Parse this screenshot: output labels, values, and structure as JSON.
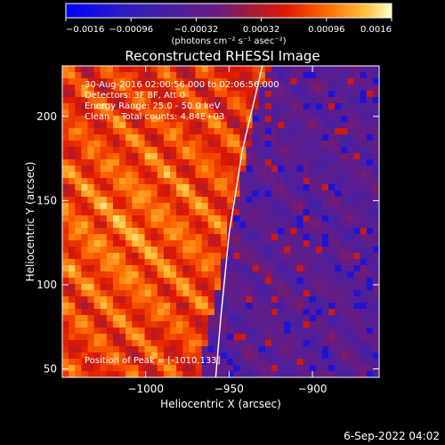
{
  "chart_data": {
    "type": "heatmap",
    "title": "Reconstructed RHESSI Image",
    "xlabel": "Heliocentric X (arcsec)",
    "ylabel": "Heliocentric Y (arcsec)",
    "xlim": [
      -1050,
      -860
    ],
    "ylim": [
      45,
      230
    ],
    "x_ticks": [
      -1000,
      -950,
      -900
    ],
    "x_tick_labels": [
      "−1000",
      "−950",
      "−900"
    ],
    "y_ticks": [
      50,
      100,
      150,
      200
    ],
    "y_tick_labels": [
      "50",
      "100",
      "150",
      "200"
    ],
    "colorbar": {
      "min": -0.0016,
      "max": 0.0016,
      "ticks": [
        -0.0016,
        -0.00096,
        -0.00032,
        0.00032,
        0.00096,
        0.0016
      ],
      "tick_labels": [
        "−0.0016",
        "−0.00096",
        "−0.00032",
        "0.00032",
        "0.00096",
        "0.0016"
      ],
      "label": "(photons cm⁻² s⁻¹ asec⁻²)"
    },
    "annotations": [
      "30-Aug-2016 02:00:56.000 to 02:06:56.000",
      "Detectors: 3F 8F, Att 0",
      "Energy Range: 25.0 - 50.0 keV",
      "Clean    Total counts: 4.84E+03"
    ],
    "peak_label": "Position of Peak = [-1010,133]",
    "peak_position": [
      -1010,
      133
    ],
    "limb_arc": [
      [
        -930,
        230
      ],
      [
        -942,
        180
      ],
      [
        -950,
        130
      ],
      [
        -955,
        80
      ],
      [
        -958,
        45
      ]
    ],
    "grid": false,
    "legend": "none"
  },
  "footer": {
    "date": "6-Sep-2022 04:02"
  },
  "colors": {
    "background": "#000000",
    "text": "#ffffff",
    "colormap": [
      "#0000ff",
      "#4b1fa0",
      "#5a1a78",
      "#7a1b6e",
      "#c01a1a",
      "#ff5a00",
      "#ffb000",
      "#fff0a0"
    ]
  }
}
